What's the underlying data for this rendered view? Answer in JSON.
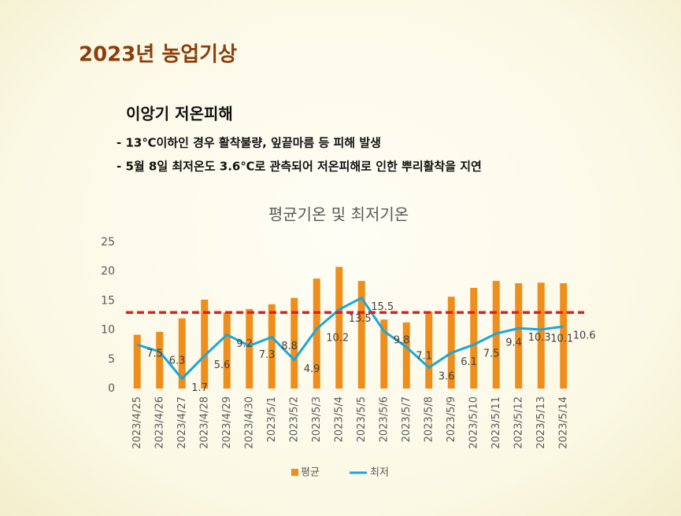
{
  "slide": {
    "title": "2023년 농업기상",
    "heading": "이앙기 저온피해",
    "bullets": [
      "- 13℃이하인 경우  활착불량, 잎끝마름 등 피해 발생",
      "- 5월 8일 최저온도 3.6℃로 관측되어 저온피해로 인한 뿌리활착을 지연"
    ]
  },
  "chart_data": {
    "type": "bar_line",
    "title": "평균기온 및 최저기온",
    "categories": [
      "2023/4/25",
      "2023/4/26",
      "2023/4/27",
      "2023/4/28",
      "2023/4/29",
      "2023/4/30",
      "2023/5/1",
      "2023/5/2",
      "2023/5/3",
      "2023/5/4",
      "2023/5/5",
      "2023/5/6",
      "2023/5/7",
      "2023/5/8",
      "2023/5/9",
      "2023/5/10",
      "2023/5/11",
      "2023/5/12",
      "2023/5/13",
      "2023/5/14"
    ],
    "series": [
      {
        "name": "평균",
        "type": "bar",
        "color": "#ee8e1c",
        "values": [
          9.2,
          9.7,
          12,
          15.2,
          13,
          13.6,
          14.4,
          15.5,
          18.8,
          20.8,
          18.4,
          11.8,
          11.3,
          13.2,
          15.7,
          17.2,
          18.4,
          18,
          18.1,
          18
        ]
      },
      {
        "name": "최저",
        "type": "line",
        "color": "#1aa7da",
        "values": [
          7.5,
          6.3,
          1.7,
          5.6,
          9.2,
          7.3,
          8.8,
          4.9,
          10.2,
          13.5,
          15.5,
          9.8,
          7.1,
          3.6,
          6.1,
          7.5,
          9.4,
          10.3,
          10.1,
          10.6
        ]
      }
    ],
    "threshold": 13,
    "threshold_color": "#e02020",
    "ylim": [
      0,
      25
    ],
    "yticks": [
      0,
      5,
      10,
      15,
      20,
      25
    ],
    "grid": false,
    "legend": "bottom"
  }
}
